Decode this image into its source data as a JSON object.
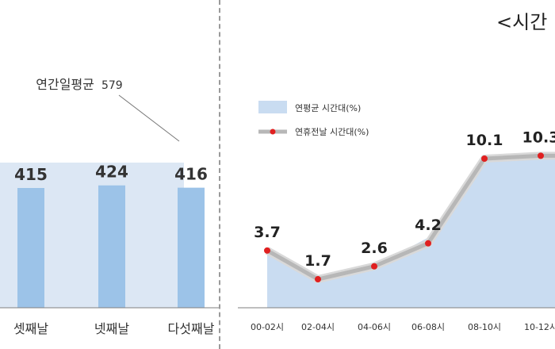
{
  "chart_data": [
    {
      "type": "bar",
      "categories": [
        "셋째날",
        "넷째날",
        "다섯째날"
      ],
      "values": [
        415,
        424,
        416
      ],
      "reference": {
        "label": "연간일평균",
        "value": 579
      },
      "colors": {
        "bar": "#9cc3e8",
        "reference_band": "#dce7f4",
        "axis": "#7f7f7f"
      }
    },
    {
      "type": "line",
      "title": "<시간",
      "categories": [
        "00-02시",
        "02-04시",
        "04-06시",
        "06-08시",
        "08-10시",
        "10-12시"
      ],
      "series": [
        {
          "name": "연평균 시간대(%)",
          "kind": "area",
          "values": [
            3.7,
            1.7,
            2.6,
            4.6,
            10.0,
            10.2
          ]
        },
        {
          "name": "연휴전날 시간대(%)",
          "kind": "line",
          "values": [
            3.7,
            1.7,
            2.6,
            4.2,
            10.1,
            10.3
          ],
          "labels": [
            "3.7",
            "1.7",
            "2.6",
            "4.2",
            "10.1",
            "10.3"
          ]
        }
      ],
      "legend": "top-left",
      "colors": {
        "area": "#c9dcf1",
        "line": "#b7b7b7",
        "marker": "#e02020",
        "axis": "#7f7f7f"
      }
    }
  ]
}
